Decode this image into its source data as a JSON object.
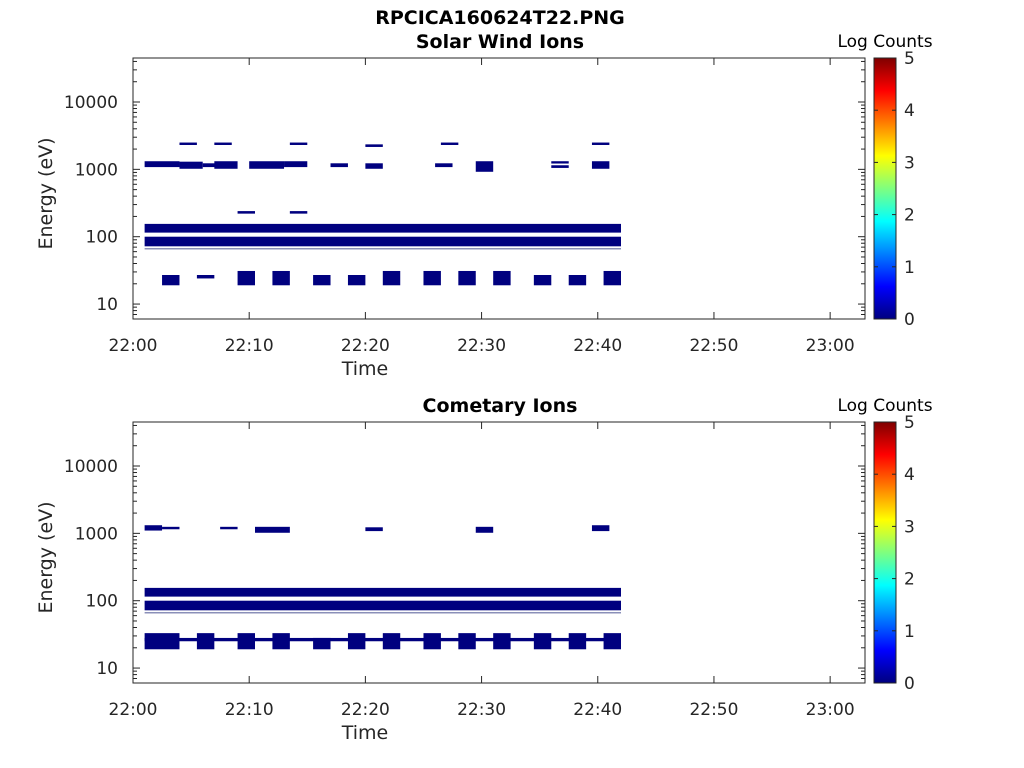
{
  "figure_title": "RPCICA160624T22.PNG",
  "colormap": [
    "#00007f",
    "#0000ff",
    "#007fff",
    "#00ffff",
    "#7fff7f",
    "#ffff00",
    "#ff7f00",
    "#ff0000",
    "#7f0000"
  ],
  "chart_data": [
    {
      "type": "heatmap",
      "title": "Solar Wind Ions",
      "xlabel": "Time",
      "ylabel": "Energy (eV)",
      "y_scale": "log",
      "xlim": [
        "22:00",
        "23:03"
      ],
      "ylim": [
        6,
        45000
      ],
      "x_ticks": [
        "22:00",
        "22:10",
        "22:20",
        "22:30",
        "22:40",
        "22:50",
        "23:00"
      ],
      "y_ticks": [
        "10",
        "100",
        "1000",
        "10000"
      ],
      "colorbar": {
        "title": "Log Counts",
        "ticks": [
          "0",
          "1",
          "2",
          "3",
          "4",
          "5"
        ],
        "range": [
          0,
          5
        ]
      },
      "cells": [
        {
          "t0": "22:01",
          "t1": "22:42",
          "e0": 115,
          "e1": 155,
          "v": 0
        },
        {
          "t0": "22:01",
          "t1": "22:42",
          "e0": 72,
          "e1": 100,
          "v": 0
        },
        {
          "t0": "22:01",
          "t1": "22:42",
          "e0": 65,
          "e1": 68,
          "v": 0.4
        },
        {
          "t0": "22:01",
          "t1": "22:04",
          "e0": 1080,
          "e1": 1320,
          "v": 0
        },
        {
          "t0": "22:04",
          "t1": "22:06",
          "e0": 1020,
          "e1": 1300,
          "v": 0
        },
        {
          "t0": "22:06",
          "t1": "22:07.5",
          "e0": 1080,
          "e1": 1230,
          "v": 0
        },
        {
          "t0": "22:07",
          "t1": "22:09",
          "e0": 1020,
          "e1": 1320,
          "v": 0
        },
        {
          "t0": "22:10",
          "t1": "22:13",
          "e0": 1020,
          "e1": 1320,
          "v": 0
        },
        {
          "t0": "22:13",
          "t1": "22:15",
          "e0": 1080,
          "e1": 1320,
          "v": 0
        },
        {
          "t0": "22:17",
          "t1": "22:18.5",
          "e0": 1080,
          "e1": 1230,
          "v": 0
        },
        {
          "t0": "22:20",
          "t1": "22:21.5",
          "e0": 1020,
          "e1": 1230,
          "v": 0
        },
        {
          "t0": "22:26",
          "t1": "22:27.5",
          "e0": 1080,
          "e1": 1230,
          "v": 0
        },
        {
          "t0": "22:29.5",
          "t1": "22:31",
          "e0": 920,
          "e1": 1320,
          "v": 0
        },
        {
          "t0": "22:36",
          "t1": "22:37.5",
          "e0": 1050,
          "e1": 1150,
          "v": 0
        },
        {
          "t0": "22:36",
          "t1": "22:37.5",
          "e0": 1220,
          "e1": 1320,
          "v": 0
        },
        {
          "t0": "22:39.5",
          "t1": "22:41",
          "e0": 1020,
          "e1": 1320,
          "v": 0
        },
        {
          "t0": "22:04",
          "t1": "22:05.5",
          "e0": 2300,
          "e1": 2500,
          "v": 0
        },
        {
          "t0": "22:07",
          "t1": "22:08.5",
          "e0": 2300,
          "e1": 2500,
          "v": 0
        },
        {
          "t0": "22:13.5",
          "t1": "22:15",
          "e0": 2300,
          "e1": 2500,
          "v": 0
        },
        {
          "t0": "22:20",
          "t1": "22:21.5",
          "e0": 2150,
          "e1": 2350,
          "v": 0
        },
        {
          "t0": "22:26.5",
          "t1": "22:28",
          "e0": 2300,
          "e1": 2500,
          "v": 0
        },
        {
          "t0": "22:39.5",
          "t1": "22:41",
          "e0": 2300,
          "e1": 2500,
          "v": 0
        },
        {
          "t0": "22:09",
          "t1": "22:10.5",
          "e0": 220,
          "e1": 240,
          "v": 0
        },
        {
          "t0": "22:13.5",
          "t1": "22:15",
          "e0": 220,
          "e1": 240,
          "v": 0
        },
        {
          "t0": "22:02.5",
          "t1": "22:04",
          "e0": 19,
          "e1": 27,
          "v": 0
        },
        {
          "t0": "22:05.5",
          "t1": "22:07",
          "e0": 24,
          "e1": 27,
          "v": 0
        },
        {
          "t0": "22:09",
          "t1": "22:10.5",
          "e0": 19,
          "e1": 31,
          "v": 0
        },
        {
          "t0": "22:12",
          "t1": "22:13.5",
          "e0": 19,
          "e1": 31,
          "v": 0
        },
        {
          "t0": "22:15.5",
          "t1": "22:17",
          "e0": 19,
          "e1": 27,
          "v": 0
        },
        {
          "t0": "22:18.5",
          "t1": "22:20",
          "e0": 19,
          "e1": 27,
          "v": 0
        },
        {
          "t0": "22:21.5",
          "t1": "22:23",
          "e0": 19,
          "e1": 31,
          "v": 0
        },
        {
          "t0": "22:25",
          "t1": "22:26.5",
          "e0": 19,
          "e1": 31,
          "v": 0
        },
        {
          "t0": "22:28",
          "t1": "22:29.5",
          "e0": 19,
          "e1": 31,
          "v": 0
        },
        {
          "t0": "22:31",
          "t1": "22:32.5",
          "e0": 19,
          "e1": 31,
          "v": 0
        },
        {
          "t0": "22:34.5",
          "t1": "22:36",
          "e0": 19,
          "e1": 27,
          "v": 0
        },
        {
          "t0": "22:37.5",
          "t1": "22:39",
          "e0": 19,
          "e1": 27,
          "v": 0
        },
        {
          "t0": "22:40.5",
          "t1": "22:42",
          "e0": 19,
          "e1": 31,
          "v": 0
        }
      ]
    },
    {
      "type": "heatmap",
      "title": "Cometary Ions",
      "xlabel": "Time",
      "ylabel": "Energy (eV)",
      "y_scale": "log",
      "xlim": [
        "22:00",
        "23:03"
      ],
      "ylim": [
        6,
        45000
      ],
      "x_ticks": [
        "22:00",
        "22:10",
        "22:20",
        "22:30",
        "22:40",
        "22:50",
        "23:00"
      ],
      "y_ticks": [
        "10",
        "100",
        "1000",
        "10000"
      ],
      "colorbar": {
        "title": "Log Counts",
        "ticks": [
          "0",
          "1",
          "2",
          "3",
          "4",
          "5"
        ],
        "range": [
          0,
          5
        ]
      },
      "cells": [
        {
          "t0": "22:01",
          "t1": "22:42",
          "e0": 115,
          "e1": 155,
          "v": 0
        },
        {
          "t0": "22:01",
          "t1": "22:42",
          "e0": 72,
          "e1": 100,
          "v": 0
        },
        {
          "t0": "22:01",
          "t1": "22:42",
          "e0": 65,
          "e1": 68,
          "v": 0.4
        },
        {
          "t0": "22:01",
          "t1": "22:02.5",
          "e0": 1100,
          "e1": 1320,
          "v": 0
        },
        {
          "t0": "22:02.5",
          "t1": "22:04",
          "e0": 1150,
          "e1": 1250,
          "v": 0
        },
        {
          "t0": "22:07.5",
          "t1": "22:09",
          "e0": 1150,
          "e1": 1250,
          "v": 0
        },
        {
          "t0": "22:10.5",
          "t1": "22:13.5",
          "e0": 1020,
          "e1": 1250,
          "v": 0
        },
        {
          "t0": "22:20",
          "t1": "22:21.5",
          "e0": 1080,
          "e1": 1230,
          "v": 0
        },
        {
          "t0": "22:29.5",
          "t1": "22:31",
          "e0": 1020,
          "e1": 1250,
          "v": 0
        },
        {
          "t0": "22:39.5",
          "t1": "22:41",
          "e0": 1080,
          "e1": 1320,
          "v": 0
        },
        {
          "t0": "22:01",
          "t1": "22:42",
          "e0": 25,
          "e1": 28,
          "v": 0
        },
        {
          "t0": "22:01",
          "t1": "22:04",
          "e0": 19,
          "e1": 33,
          "v": 0
        },
        {
          "t0": "22:05.5",
          "t1": "22:07",
          "e0": 19,
          "e1": 33,
          "v": 0
        },
        {
          "t0": "22:09",
          "t1": "22:10.5",
          "e0": 19,
          "e1": 33,
          "v": 0
        },
        {
          "t0": "22:12",
          "t1": "22:13.5",
          "e0": 19,
          "e1": 33,
          "v": 0
        },
        {
          "t0": "22:15.5",
          "t1": "22:17",
          "e0": 19,
          "e1": 28,
          "v": 0
        },
        {
          "t0": "22:18.5",
          "t1": "22:20",
          "e0": 19,
          "e1": 33,
          "v": 0
        },
        {
          "t0": "22:21.5",
          "t1": "22:23",
          "e0": 19,
          "e1": 33,
          "v": 0
        },
        {
          "t0": "22:25",
          "t1": "22:26.5",
          "e0": 19,
          "e1": 33,
          "v": 0
        },
        {
          "t0": "22:28",
          "t1": "22:29.5",
          "e0": 19,
          "e1": 33,
          "v": 0
        },
        {
          "t0": "22:31",
          "t1": "22:32.5",
          "e0": 19,
          "e1": 33,
          "v": 0
        },
        {
          "t0": "22:34.5",
          "t1": "22:36",
          "e0": 19,
          "e1": 33,
          "v": 0
        },
        {
          "t0": "22:37.5",
          "t1": "22:39",
          "e0": 19,
          "e1": 33,
          "v": 0
        },
        {
          "t0": "22:40.5",
          "t1": "22:42",
          "e0": 19,
          "e1": 33,
          "v": 0
        }
      ]
    }
  ]
}
